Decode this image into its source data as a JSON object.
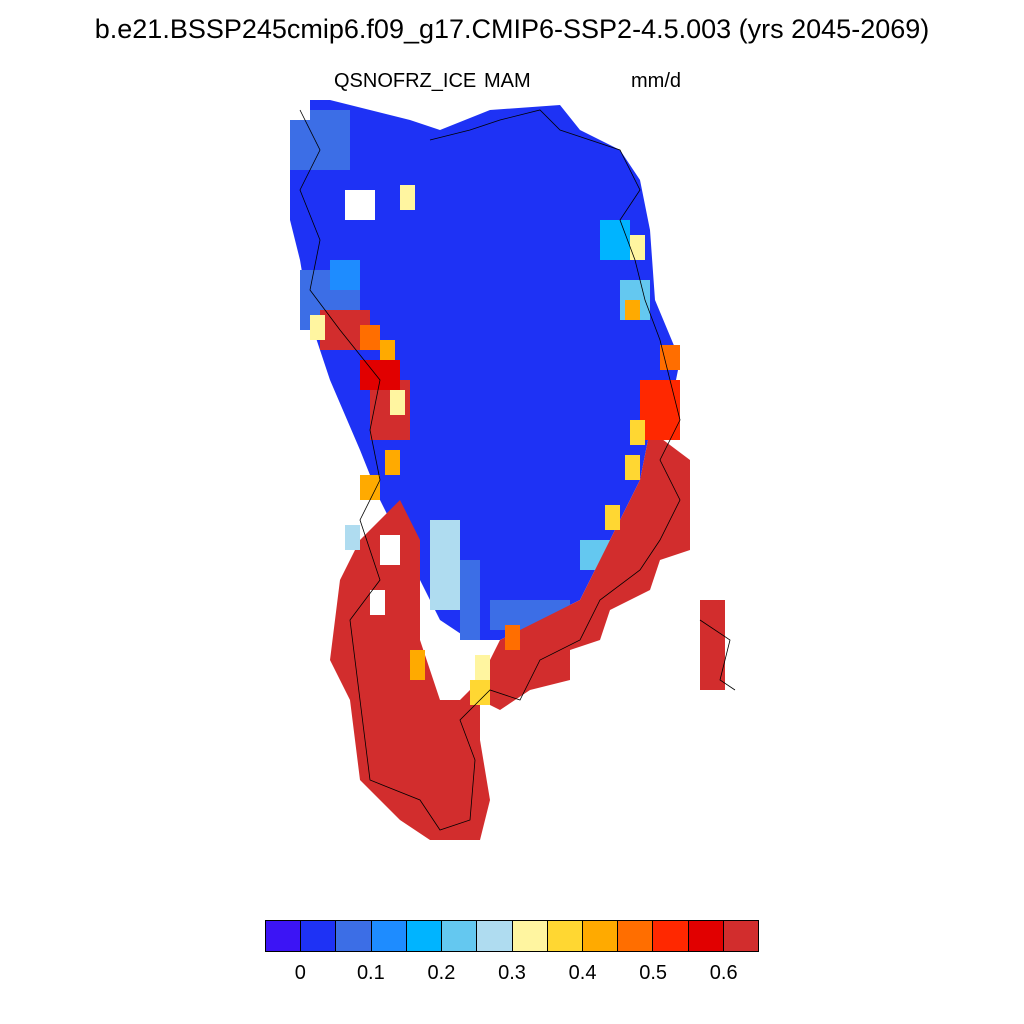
{
  "title": "b.e21.BSSP245cmip6.f09_g17.CMIP6-SSP2-4.5.003 (yrs 2045-2069)",
  "subtitle_left": "QSNOFRZ_ICE",
  "subtitle_center": "MAM",
  "subtitle_right": "mm/d",
  "colorbar": {
    "colors": [
      "#3c14f5",
      "#1e32f5",
      "#3c6ee6",
      "#1e8cff",
      "#00b4ff",
      "#64c8f0",
      "#afdcf0",
      "#fff5a0",
      "#ffd732",
      "#ffaa00",
      "#ff6e00",
      "#ff2800",
      "#e10000",
      "#d22d2d"
    ],
    "tick_labels": [
      "0",
      "0.1",
      "0.2",
      "0.3",
      "0.4",
      "0.5",
      "0.6"
    ]
  }
}
